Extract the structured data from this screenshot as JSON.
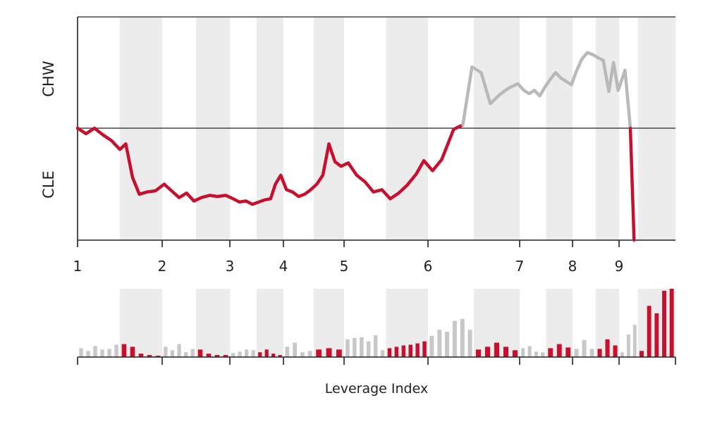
{
  "colors": {
    "red": "#c8102e",
    "gray_line": "#b9b9b9",
    "gray_bar": "#c8c8c8",
    "band": "#ececec",
    "axis": "#222222"
  },
  "chart_data": [
    {
      "type": "line",
      "panel": "top",
      "ylabel_upper": "CHW",
      "ylabel_lower": "CLE",
      "xlim": [
        1,
        9.75
      ],
      "ylim": [
        -1,
        1
      ],
      "zero_line": 0,
      "x_ticks": [
        1,
        2,
        3,
        4,
        5,
        6,
        7,
        8,
        9
      ],
      "x_tick_labels": [
        "1",
        "2",
        "3",
        "4",
        "5",
        "6",
        "7",
        "8",
        "9"
      ],
      "shaded_bands": [
        [
          1.5,
          2
        ],
        [
          2.5,
          3
        ],
        [
          3.5,
          4
        ],
        [
          4.5,
          5
        ],
        [
          5.5,
          6
        ],
        [
          6.5,
          7
        ],
        [
          7.5,
          8
        ],
        [
          8.5,
          9
        ],
        [
          9.25,
          9.75
        ]
      ],
      "series": [
        {
          "points": [
            [
              1.0,
              0.0
            ],
            [
              1.1,
              -0.05
            ],
            [
              1.2,
              0.0
            ],
            [
              1.3,
              -0.06
            ],
            [
              1.4,
              -0.11
            ],
            [
              1.5,
              -0.19
            ],
            [
              1.57,
              -0.14
            ],
            [
              1.65,
              -0.44
            ],
            [
              1.73,
              -0.59
            ],
            [
              1.82,
              -0.57
            ],
            [
              1.92,
              -0.56
            ],
            [
              2.03,
              -0.5
            ],
            [
              2.14,
              -0.56
            ],
            [
              2.25,
              -0.62
            ],
            [
              2.36,
              -0.58
            ],
            [
              2.47,
              -0.65
            ],
            [
              2.58,
              -0.62
            ],
            [
              2.7,
              -0.6
            ],
            [
              2.82,
              -0.61
            ],
            [
              2.94,
              -0.6
            ],
            [
              3.06,
              -0.63
            ],
            [
              3.18,
              -0.66
            ],
            [
              3.3,
              -0.65
            ],
            [
              3.42,
              -0.68
            ],
            [
              3.54,
              -0.66
            ],
            [
              3.65,
              -0.64
            ],
            [
              3.76,
              -0.63
            ],
            [
              3.85,
              -0.5
            ],
            [
              3.95,
              -0.42
            ],
            [
              4.05,
              -0.55
            ],
            [
              4.15,
              -0.57
            ],
            [
              4.25,
              -0.61
            ],
            [
              4.35,
              -0.59
            ],
            [
              4.45,
              -0.55
            ],
            [
              4.55,
              -0.5
            ],
            [
              4.65,
              -0.42
            ],
            [
              4.75,
              -0.14
            ],
            [
              4.85,
              -0.3
            ],
            [
              4.95,
              -0.34
            ],
            [
              5.05,
              -0.31
            ],
            [
              5.15,
              -0.42
            ],
            [
              5.25,
              -0.48
            ],
            [
              5.35,
              -0.57
            ],
            [
              5.45,
              -0.55
            ],
            [
              5.55,
              -0.63
            ],
            [
              5.65,
              -0.58
            ],
            [
              5.75,
              -0.51
            ],
            [
              5.86,
              -0.41
            ],
            [
              5.95,
              -0.29
            ],
            [
              6.05,
              -0.38
            ],
            [
              6.15,
              -0.28
            ],
            [
              6.28,
              -0.01
            ],
            [
              6.38,
              0.03
            ]
          ]
        },
        {
          "points": [
            [
              6.38,
              0.03
            ],
            [
              6.48,
              0.55
            ],
            [
              6.58,
              0.5
            ],
            [
              6.68,
              0.22
            ],
            [
              6.78,
              0.3
            ],
            [
              6.88,
              0.36
            ],
            [
              6.98,
              0.4
            ],
            [
              7.08,
              0.34
            ],
            [
              7.18,
              0.31
            ],
            [
              7.28,
              0.34
            ],
            [
              7.38,
              0.29
            ],
            [
              7.48,
              0.37
            ],
            [
              7.58,
              0.44
            ],
            [
              7.68,
              0.5
            ],
            [
              7.78,
              0.45
            ],
            [
              7.88,
              0.42
            ],
            [
              7.98,
              0.39
            ],
            [
              8.08,
              0.51
            ],
            [
              8.2,
              0.62
            ],
            [
              8.32,
              0.68
            ],
            [
              8.44,
              0.66
            ],
            [
              8.56,
              0.63
            ],
            [
              8.66,
              0.61
            ],
            [
              8.78,
              0.33
            ],
            [
              8.88,
              0.59
            ],
            [
              8.98,
              0.34
            ],
            [
              9.08,
              0.52
            ],
            [
              9.15,
              0.0
            ]
          ]
        },
        {
          "points": [
            [
              9.15,
              0.0
            ],
            [
              9.2,
              -1.0
            ]
          ]
        }
      ]
    },
    {
      "type": "bar",
      "panel": "bottom",
      "xlabel": "Leverage Index",
      "ylim": [
        0,
        1
      ],
      "bars_gray": [
        0.13,
        0.09,
        0.16,
        0.11,
        0.12,
        0.18,
        0.15,
        0.1,
        0.19,
        0.07,
        0.12,
        0.06,
        0.08,
        0.11,
        0.1,
        0.15,
        0.21,
        0.07,
        0.09,
        0.26,
        0.28,
        0.29,
        0.23,
        0.32,
        0.1,
        0.31,
        0.4,
        0.37,
        0.53,
        0.56,
        0.4,
        0.13,
        0.16,
        0.08,
        0.07,
        0.12,
        0.25,
        0.12,
        0.07,
        0.33,
        0.47
      ],
      "bars_red": [
        0.19,
        0.15,
        0.05,
        0.03,
        0.02,
        0.11,
        0.05,
        0.03,
        0.03,
        0.07,
        0.11,
        0.05,
        0.03,
        0.11,
        0.13,
        0.11,
        0.13,
        0.15,
        0.17,
        0.18,
        0.2,
        0.23,
        0.11,
        0.15,
        0.21,
        0.15,
        0.1,
        0.13,
        0.19,
        0.14,
        0.12,
        0.26,
        0.17,
        0.09,
        0.75,
        0.64,
        0.97,
        1.0
      ]
    }
  ]
}
